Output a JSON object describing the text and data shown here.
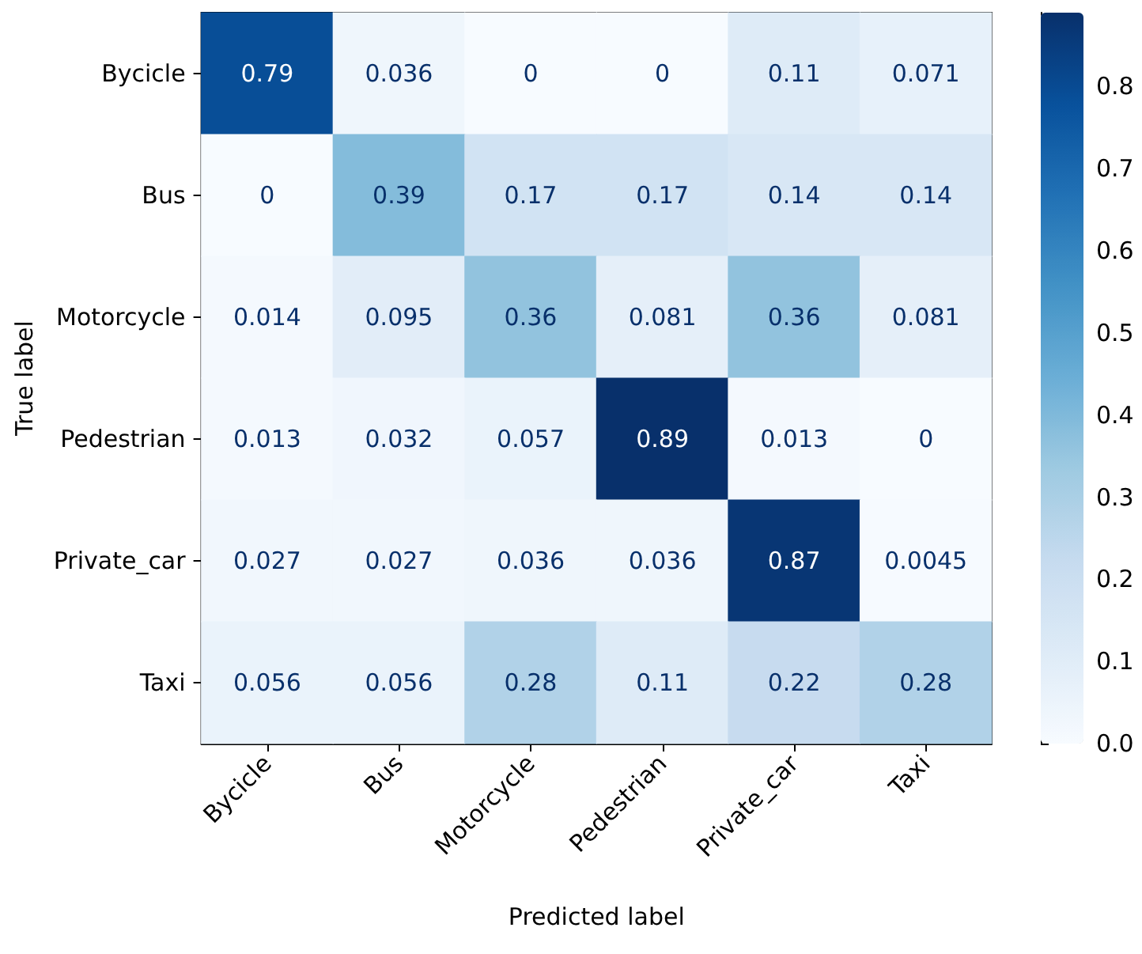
{
  "chart_data": {
    "type": "heatmap",
    "xlabel": "Predicted label",
    "ylabel": "True label",
    "categories": [
      "Bycicle",
      "Bus",
      "Motorcycle",
      "Pedestrian",
      "Private_car",
      "Taxi"
    ],
    "y_categories": [
      "Bycicle",
      "Bus",
      "Motorcycle",
      "Pedestrian",
      "Private_car",
      "Taxi"
    ],
    "cells": [
      [
        0.79,
        0.036,
        0,
        0,
        0.11,
        0.071
      ],
      [
        0,
        0.39,
        0.17,
        0.17,
        0.14,
        0.14
      ],
      [
        0.014,
        0.095,
        0.36,
        0.081,
        0.36,
        0.081
      ],
      [
        0.013,
        0.032,
        0.057,
        0.89,
        0.013,
        0
      ],
      [
        0.027,
        0.027,
        0.036,
        0.036,
        0.87,
        0.0045
      ],
      [
        0.056,
        0.056,
        0.28,
        0.11,
        0.22,
        0.28
      ]
    ],
    "data_labels": true,
    "clim": [
      0,
      0.89
    ],
    "cticks": [
      {
        "value": 0,
        "label": "0.0"
      },
      {
        "value": 0.1,
        "label": "0.1"
      },
      {
        "value": 0.2,
        "label": "0.2"
      },
      {
        "value": 0.3,
        "label": "0.3"
      },
      {
        "value": 0.4,
        "label": "0.4"
      },
      {
        "value": 0.5,
        "label": "0.5"
      },
      {
        "value": 0.6,
        "label": "0.6"
      },
      {
        "value": 0.7,
        "label": "0.7"
      },
      {
        "value": 0.8,
        "label": "0.8"
      }
    ]
  }
}
